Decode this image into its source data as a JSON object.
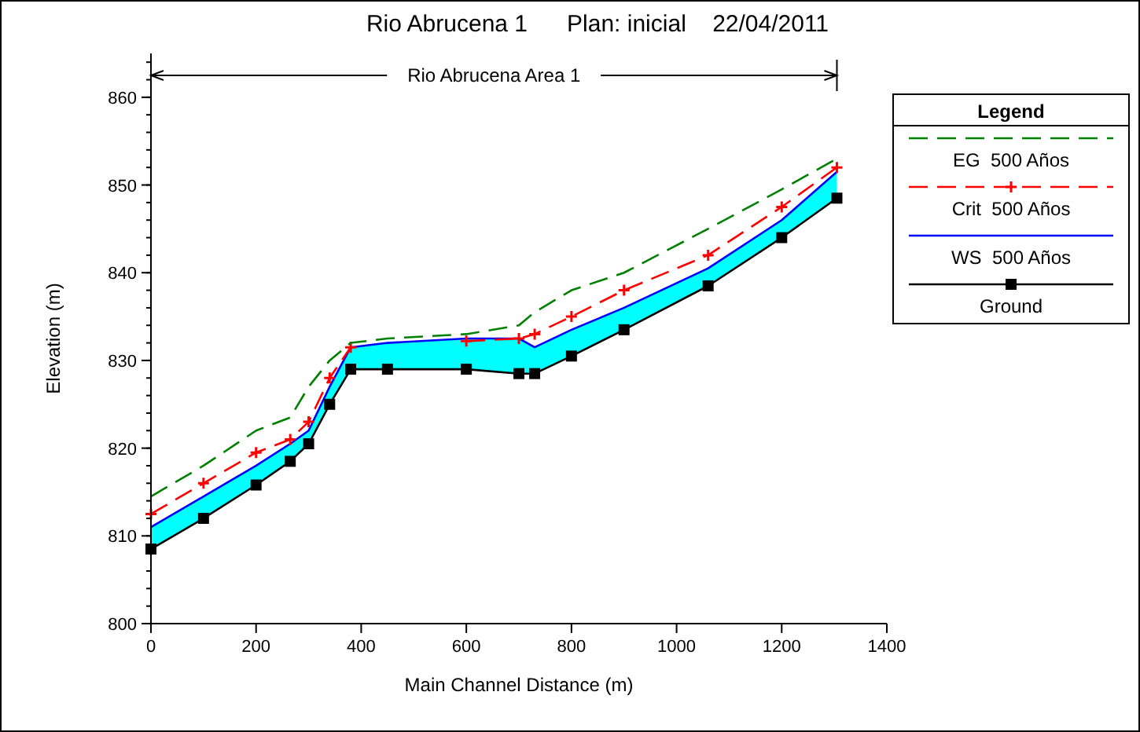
{
  "chart_data": {
    "type": "line",
    "title": "Rio Abrucena 1      Plan: inicial    22/04/2011",
    "xlabel": "Main Channel Distance (m)",
    "ylabel": "Elevation (m)",
    "legend_title": "Legend",
    "legend": "right",
    "x": [
      0,
      100,
      200,
      265,
      300,
      340,
      380,
      450,
      600,
      700,
      730,
      800,
      900,
      1060,
      1200,
      1305
    ],
    "xlim": [
      0,
      1400
    ],
    "xticks": [
      0,
      200,
      400,
      600,
      800,
      1000,
      1200,
      1400
    ],
    "ylim": [
      800,
      865
    ],
    "yticks": [
      800,
      810,
      820,
      830,
      840,
      850,
      860
    ],
    "annotations": [
      "Rio Abrucena Area 1"
    ],
    "series": [
      {
        "name": "Ground",
        "color": "#000000",
        "line_style": "solid",
        "marker": "square",
        "values": [
          808.5,
          812,
          815.8,
          818.5,
          820.5,
          825,
          829,
          829,
          829,
          828.5,
          828.5,
          830.5,
          833.5,
          838.5,
          844,
          848.5
        ]
      },
      {
        "name": "WS  500 Años",
        "color": "#0000ff",
        "line_style": "solid",
        "marker": "none",
        "lower": [
          808.5,
          812,
          815.8,
          818.5,
          820.5,
          825,
          829,
          829,
          829,
          828.5,
          828.5,
          830.5,
          833.5,
          838.5,
          844,
          848.5
        ],
        "upper": [
          811,
          814.5,
          818,
          820.5,
          822,
          827,
          831.5,
          832,
          832.5,
          832.5,
          831.5,
          833.5,
          836,
          840.5,
          846,
          851.5
        ],
        "values": [
          811,
          814.5,
          818,
          820.5,
          822,
          827,
          831.5,
          832,
          832.5,
          832.5,
          831.5,
          833.5,
          836,
          840.5,
          846,
          851.5
        ]
      },
      {
        "name": "Crit  500 Años",
        "color": "#ff0000",
        "line_style": "dashed",
        "marker": "cross",
        "values": [
          812.5,
          816,
          819.5,
          821,
          823,
          828,
          831.5,
          null,
          832.2,
          832.5,
          833,
          835,
          838,
          842,
          847.5,
          852
        ]
      },
      {
        "name": "EG  500 Años",
        "color": "#008000",
        "line_style": "dashed",
        "marker": "none",
        "values": [
          814.5,
          818,
          822,
          823.5,
          827,
          830,
          832,
          832.5,
          833,
          834,
          835.5,
          838,
          840,
          845,
          849.5,
          853
        ]
      }
    ]
  }
}
